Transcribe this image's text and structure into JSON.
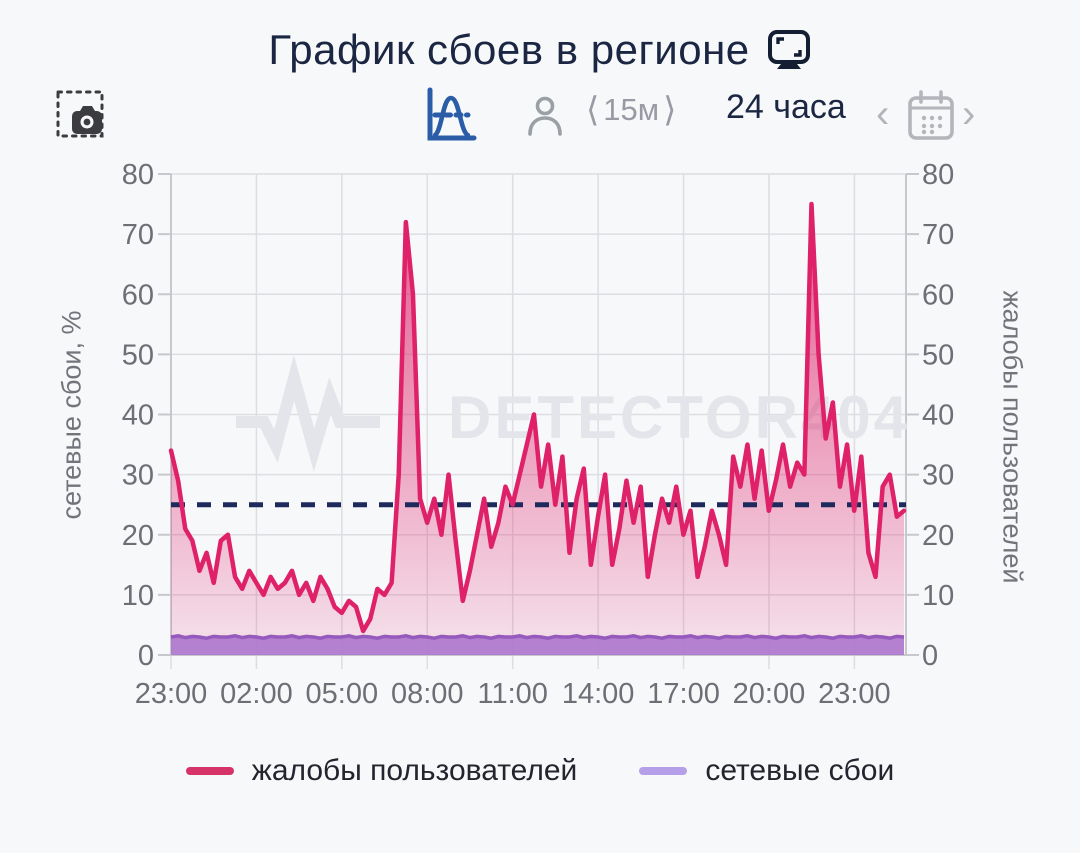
{
  "title": {
    "text": "График сбоев в регионе",
    "icon": "monitor-icon"
  },
  "toolbar": {
    "screenshot_button": "camera-screenshot-icon",
    "distribution_button": "bell-curve-chart-icon",
    "user_button": "person-icon",
    "interval": {
      "prev": "⟨",
      "value": "15м",
      "next": "⟩"
    },
    "range_label": "24 часа",
    "date_nav": {
      "prev": "‹",
      "calendar": "calendar-icon",
      "next": "›"
    }
  },
  "chart_data": {
    "type": "line",
    "title": "График сбоев в регионе",
    "watermark": "DETECTOR404",
    "ylabel_left": "сетевые сбои, %",
    "ylabel_right": "жалобы пользователей",
    "ylim": [
      0,
      80
    ],
    "yticks": [
      0,
      10,
      20,
      30,
      40,
      50,
      60,
      70,
      80
    ],
    "x_tick_labels": [
      "23:00",
      "02:00",
      "05:00",
      "08:00",
      "11:00",
      "14:00",
      "17:00",
      "20:00",
      "23:00"
    ],
    "x_step_minutes": 15,
    "hours_per_gridline": 3,
    "grid": true,
    "legend_position": "bottom",
    "threshold": {
      "value": 25,
      "color": "#1f2a5c",
      "style": "dashed"
    },
    "series": [
      {
        "name": "жалобы пользователей",
        "axis": "right",
        "color": "#de2168",
        "fill": "gradient",
        "values": [
          34,
          29,
          21,
          19,
          14,
          17,
          12,
          19,
          20,
          13,
          11,
          14,
          12,
          10,
          13,
          11,
          12,
          14,
          10,
          12,
          9,
          13,
          11,
          8,
          7,
          9,
          8,
          4,
          6,
          11,
          10,
          12,
          30,
          72,
          60,
          26,
          22,
          26,
          20,
          30,
          19,
          9,
          14,
          20,
          26,
          18,
          22,
          28,
          25,
          30,
          35,
          40,
          28,
          35,
          25,
          33,
          17,
          26,
          31,
          15,
          23,
          30,
          15,
          21,
          29,
          22,
          28,
          13,
          20,
          26,
          22,
          28,
          20,
          24,
          13,
          18,
          24,
          20,
          15,
          33,
          28,
          35,
          26,
          34,
          24,
          29,
          35,
          28,
          32,
          30,
          75,
          50,
          36,
          42,
          28,
          35,
          24,
          33,
          17,
          13,
          28,
          30,
          23,
          24
        ]
      },
      {
        "name": "сетевые сбои",
        "axis": "left",
        "color": "#a883da",
        "fill": "solid",
        "values": [
          3,
          3.2,
          2.9,
          3.1,
          3,
          2.8,
          3.1,
          3,
          3,
          3.2,
          2.9,
          3.1,
          3,
          2.8,
          3.1,
          3,
          3,
          3.2,
          2.9,
          3.1,
          3,
          2.8,
          3.1,
          3,
          3,
          3.2,
          2.9,
          3.1,
          3,
          2.8,
          3.1,
          3,
          3,
          3.2,
          2.9,
          3.1,
          3,
          2.8,
          3.1,
          3,
          3,
          3.2,
          2.9,
          3.1,
          3,
          2.8,
          3.1,
          3,
          3,
          3.2,
          2.9,
          3.1,
          3,
          2.8,
          3.1,
          3,
          3,
          3.2,
          2.9,
          3.1,
          3,
          2.8,
          3.1,
          3,
          3,
          3.2,
          2.9,
          3.1,
          3,
          2.8,
          3.1,
          3,
          3,
          3.2,
          2.9,
          3.1,
          3,
          2.8,
          3.1,
          3,
          3,
          3.2,
          2.9,
          3.1,
          3,
          2.8,
          3.1,
          3,
          3,
          3.2,
          2.9,
          3.1,
          3,
          2.8,
          3.1,
          3,
          3,
          3.2,
          2.9,
          3.1,
          3,
          2.8,
          3.1,
          3
        ]
      }
    ]
  },
  "colors": {
    "background": "#f7f8fa",
    "grid": "#dddde2",
    "axis": "#c7c7cd",
    "tick_text": "#6e6e77",
    "title_text": "#1b2642",
    "watermark": "#e3e5ea",
    "complaints_line": "#de2168",
    "network_line": "#8b62c9",
    "network_fill": "#a883da",
    "threshold": "#1f2a5c",
    "legend_swatch_complaints": "#d63368",
    "legend_swatch_network": "#b49fe8"
  }
}
